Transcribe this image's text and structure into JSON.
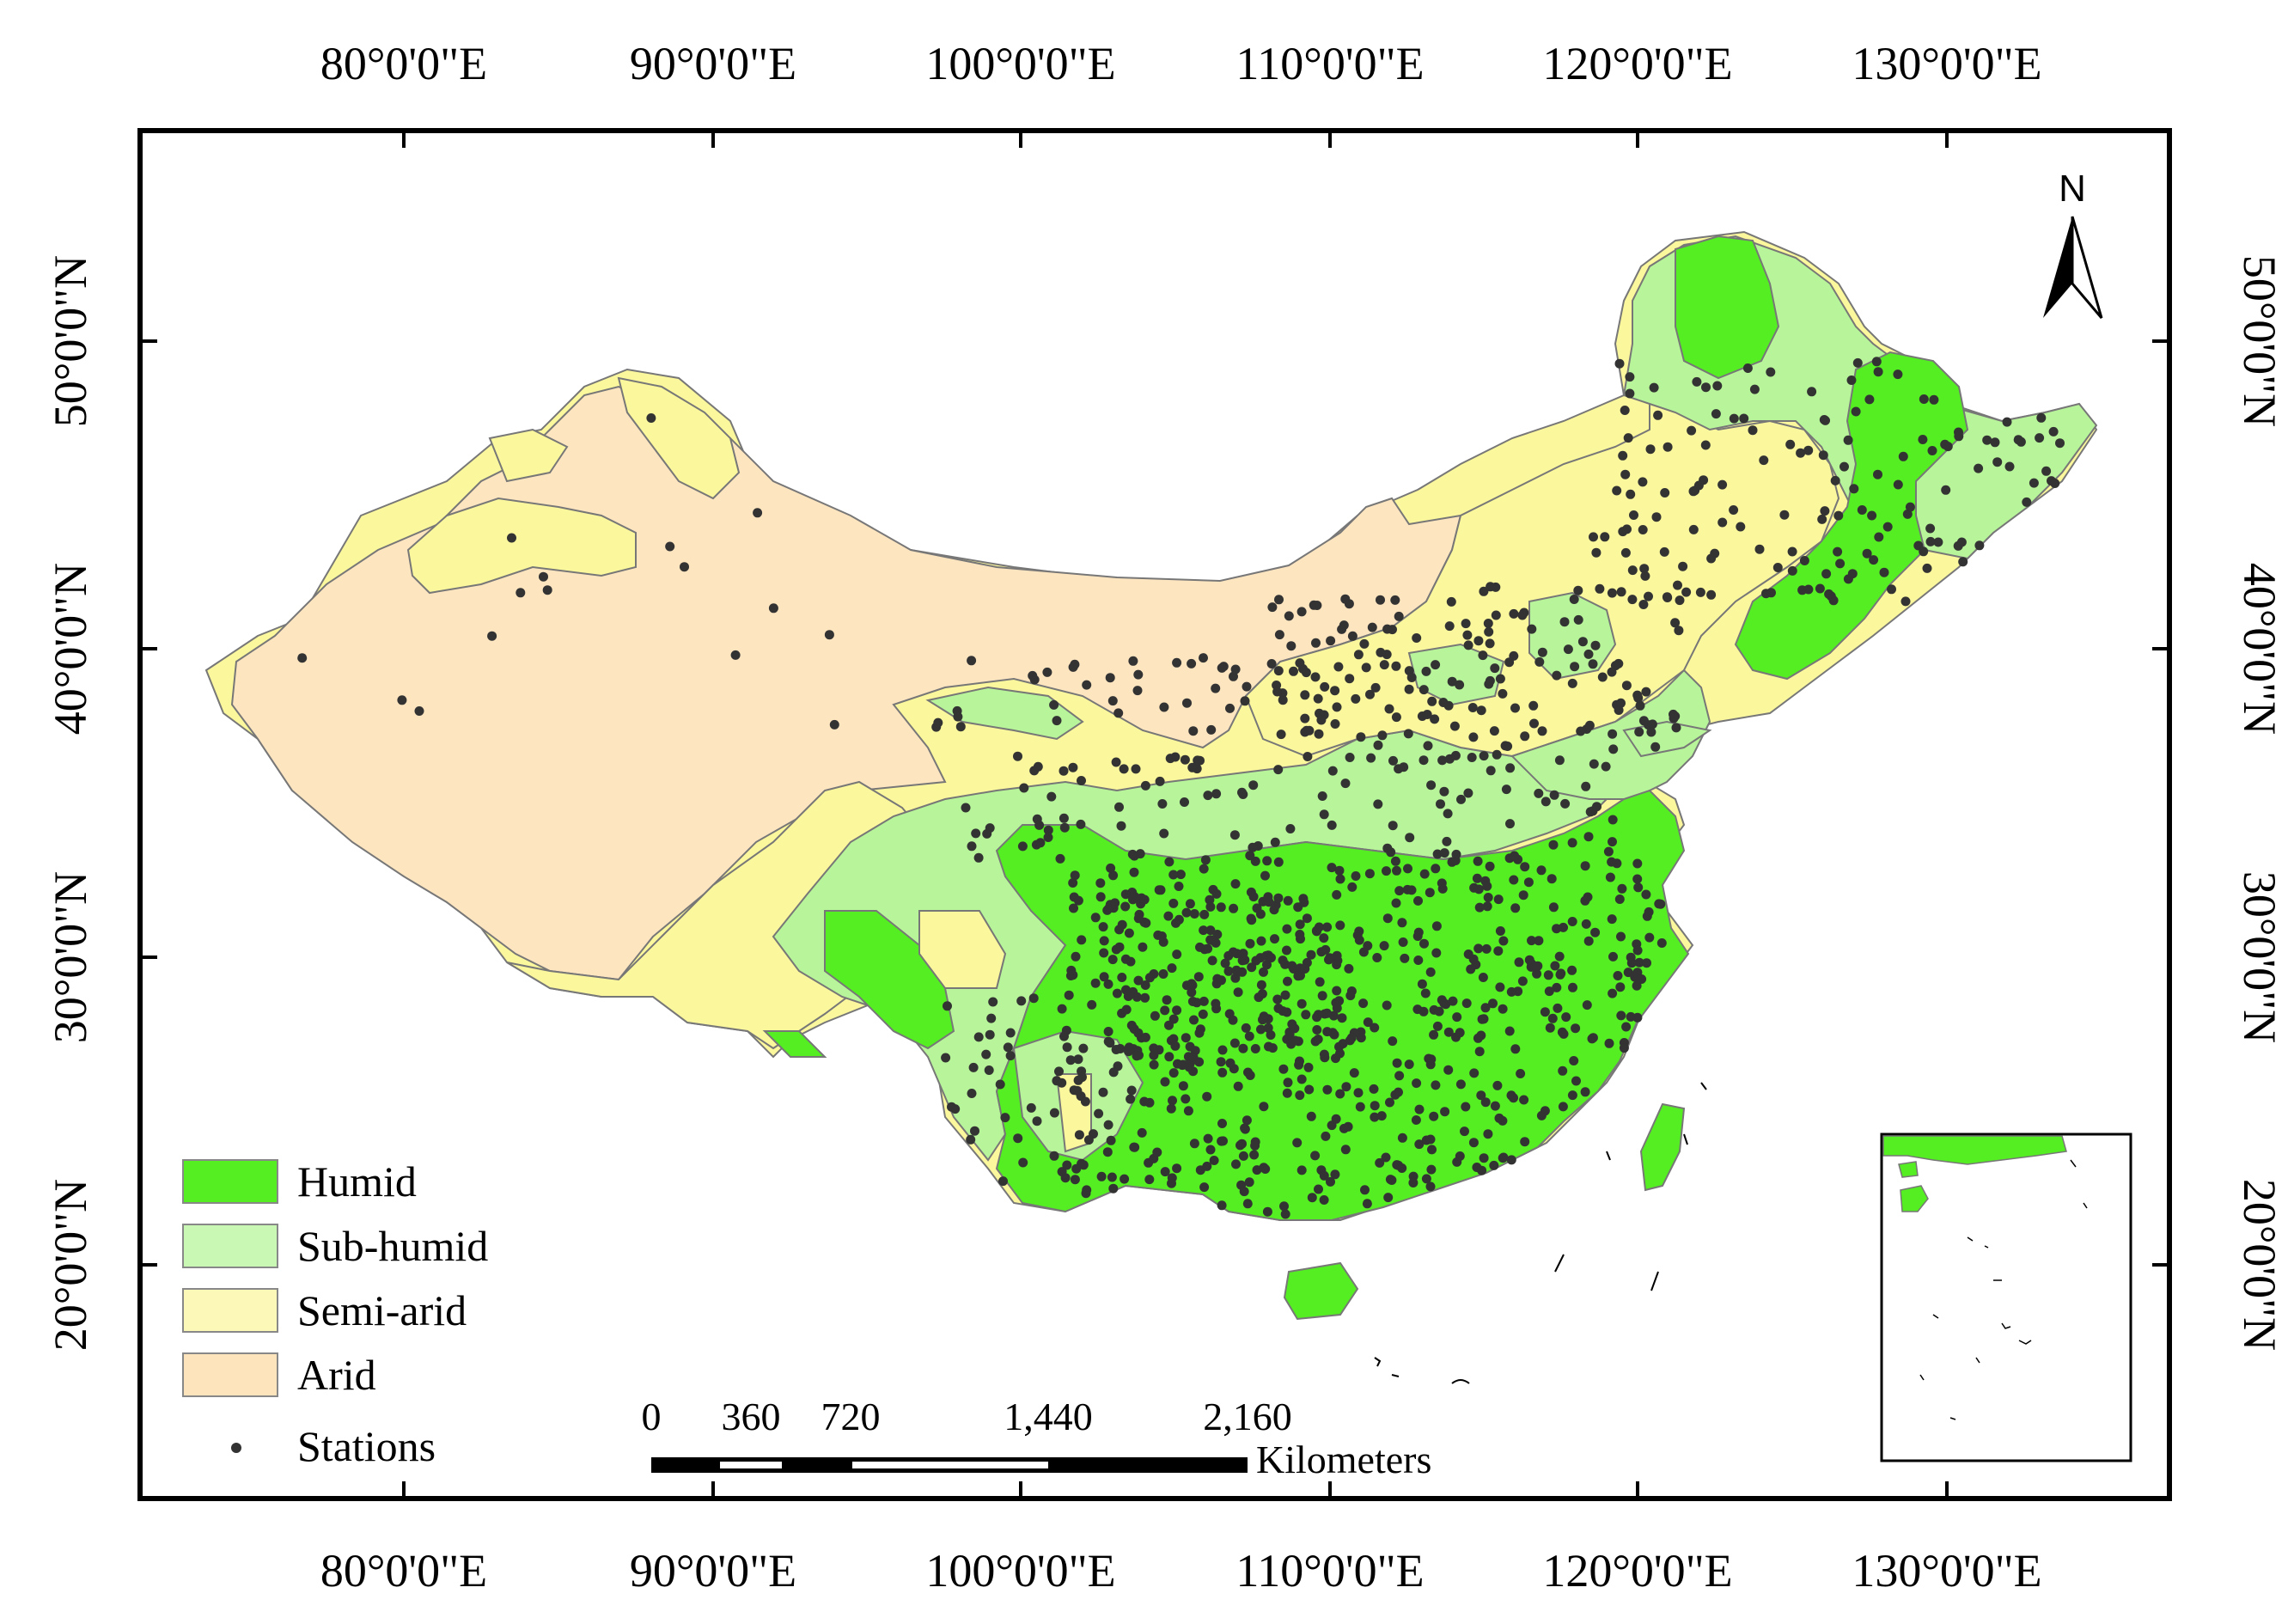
{
  "map": {
    "lon_labels": [
      "80°0'0\"E",
      "90°0'0\"E",
      "100°0'0\"E",
      "110°0'0\"E",
      "120°0'0\"E",
      "130°0'0\"E"
    ],
    "lat_labels": [
      "20°0'0\"N",
      "30°0'0\"N",
      "40°0'0\"N",
      "50°0'0\"N"
    ],
    "legend": [
      {
        "label": "Humid",
        "color": "#55ee22",
        "kind": "fill"
      },
      {
        "label": "Sub-humid",
        "color": "#c9f7b4",
        "kind": "fill"
      },
      {
        "label": "Semi-arid",
        "color": "#fcf9b8",
        "kind": "fill"
      },
      {
        "label": "Arid",
        "color": "#fde4bd",
        "kind": "fill"
      },
      {
        "label": "Stations",
        "color": "#333333",
        "kind": "point"
      }
    ],
    "scale_bar": {
      "ticks": [
        "0",
        "360",
        "720",
        "1,440",
        "2,160"
      ],
      "unit": "Kilometers"
    },
    "north_arrow": "N",
    "inset": "south-china-sea-inset",
    "colors": {
      "humid": "#55ee22",
      "sub_humid": "#b8f59a",
      "semi_arid": "#fbf79d",
      "arid": "#fde5c0",
      "station": "#333333",
      "frame": "#000000"
    }
  }
}
